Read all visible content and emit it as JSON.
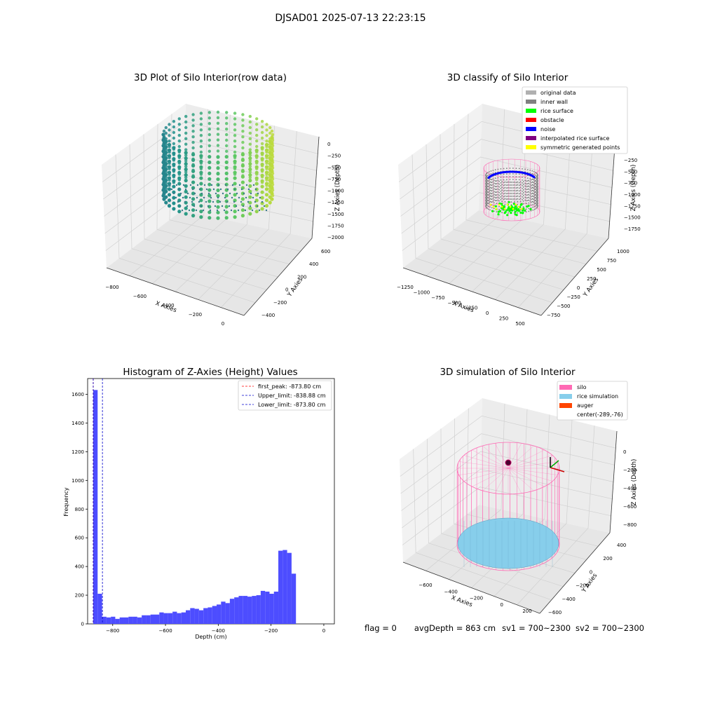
{
  "suptitle": "DJSAD01 2025-07-13 22:23:15",
  "footer": {
    "flag": "flag = 0",
    "avg_depth": "avgDepth = 863 cm",
    "sv1": "sv1 = 700~2300",
    "sv2": "sv2 = 700~2300"
  },
  "colors": {
    "hist_bar": "#4d4dff",
    "peak_line": "#ff0000",
    "limit_line": "#0000cc",
    "silo": "#ff69b4",
    "rice_sim": "#87ceeb",
    "auger": "#ff4500",
    "original": "#b0b0b0",
    "inner_wall": "#808080",
    "rice_surface": "#00ff00",
    "obstacle": "#ff0000",
    "noise": "#0000ff",
    "interp": "#800080",
    "symmetric": "#ffff00"
  },
  "chart_data": [
    {
      "type": "scatter",
      "title": "3D Plot of Silo Interior(row data)",
      "xlabel": "X Axies",
      "ylabel": "Y Axies",
      "zlabel": "Z Axies (Depth)",
      "x_ticks": [
        "−800",
        "−600",
        "−400",
        "−200",
        "0"
      ],
      "y_ticks": [
        "−400",
        "−200",
        "0",
        "200",
        "400",
        "600"
      ],
      "z_ticks": [
        "0",
        "−250",
        "−500",
        "−750",
        "−1000",
        "−1250",
        "−1500",
        "−1750",
        "−2000"
      ],
      "colormap": "viridis"
    },
    {
      "type": "scatter",
      "title": "3D classify of Silo Interior",
      "xlabel": "X Axies",
      "ylabel": "Y Axies",
      "zlabel": "Z Axies (Depth)",
      "x_ticks": [
        "−1250",
        "−1000",
        "−750",
        "−500",
        "−250",
        "0",
        "250",
        "500"
      ],
      "y_ticks": [
        "−750",
        "−500",
        "−250",
        "0",
        "250",
        "500",
        "750",
        "1000"
      ],
      "z_ticks": [
        "−250",
        "−500",
        "−750",
        "−1000",
        "−1250",
        "−1500",
        "−1750"
      ],
      "legend": [
        {
          "label": "original data",
          "color": "#b0b0b0"
        },
        {
          "label": "inner wall",
          "color": "#808080"
        },
        {
          "label": "rice surface",
          "color": "#00ff00"
        },
        {
          "label": "obstacle",
          "color": "#ff0000"
        },
        {
          "label": "noise",
          "color": "#0000ff"
        },
        {
          "label": "interpolated rice surface",
          "color": "#800080"
        },
        {
          "label": "symmetric generated points",
          "color": "#ffff00"
        }
      ]
    },
    {
      "type": "bar",
      "title": "Histogram of Z-Axies (Height) Values",
      "xlabel": "Depth (cm)",
      "ylabel": "Frequency",
      "xlim": [
        -895,
        40
      ],
      "ylim": [
        0,
        1710
      ],
      "x_ticks": [
        -800,
        -600,
        -400,
        -200,
        0
      ],
      "x_tick_labels": [
        "−800",
        "−600",
        "−400",
        "−200",
        "0"
      ],
      "y_ticks": [
        0,
        200,
        400,
        600,
        800,
        1000,
        1200,
        1400,
        1600
      ],
      "bin_start": -873.8,
      "bin_width": 16.7,
      "values": [
        1630,
        210,
        50,
        45,
        50,
        35,
        45,
        45,
        50,
        50,
        45,
        60,
        60,
        65,
        65,
        80,
        75,
        75,
        85,
        75,
        80,
        95,
        110,
        105,
        95,
        110,
        115,
        125,
        135,
        155,
        145,
        175,
        185,
        195,
        195,
        190,
        195,
        200,
        230,
        225,
        210,
        225,
        510,
        515,
        495,
        350
      ],
      "vlines": [
        {
          "label": "first_peak: -873.80 cm",
          "x": -873.8,
          "color": "#ff0000"
        },
        {
          "label": "Upper_limit: -838.88 cm",
          "x": -838.88,
          "color": "#0000cc"
        },
        {
          "label": "Lower_limit: -873.80 cm",
          "x": -873.8,
          "color": "#0000cc"
        }
      ]
    },
    {
      "type": "scatter",
      "title": "3D simulation of Silo Interior",
      "xlabel": "X Axies",
      "ylabel": "Y Axies",
      "zlabel": "Z Axies (Depth)",
      "x_ticks": [
        "−600",
        "−400",
        "−200",
        "0",
        "200"
      ],
      "y_ticks": [
        "−600",
        "−400",
        "−200",
        "0",
        "200",
        "400"
      ],
      "z_ticks": [
        "0",
        "−200",
        "−400",
        "−600",
        "−800"
      ],
      "legend": [
        {
          "label": "silo",
          "color": "#ff69b4"
        },
        {
          "label": "rice simulation",
          "color": "#87ceeb"
        },
        {
          "label": "auger",
          "color": "#ff4500"
        },
        {
          "label": "center(-289,-76)",
          "color": ""
        }
      ]
    }
  ]
}
